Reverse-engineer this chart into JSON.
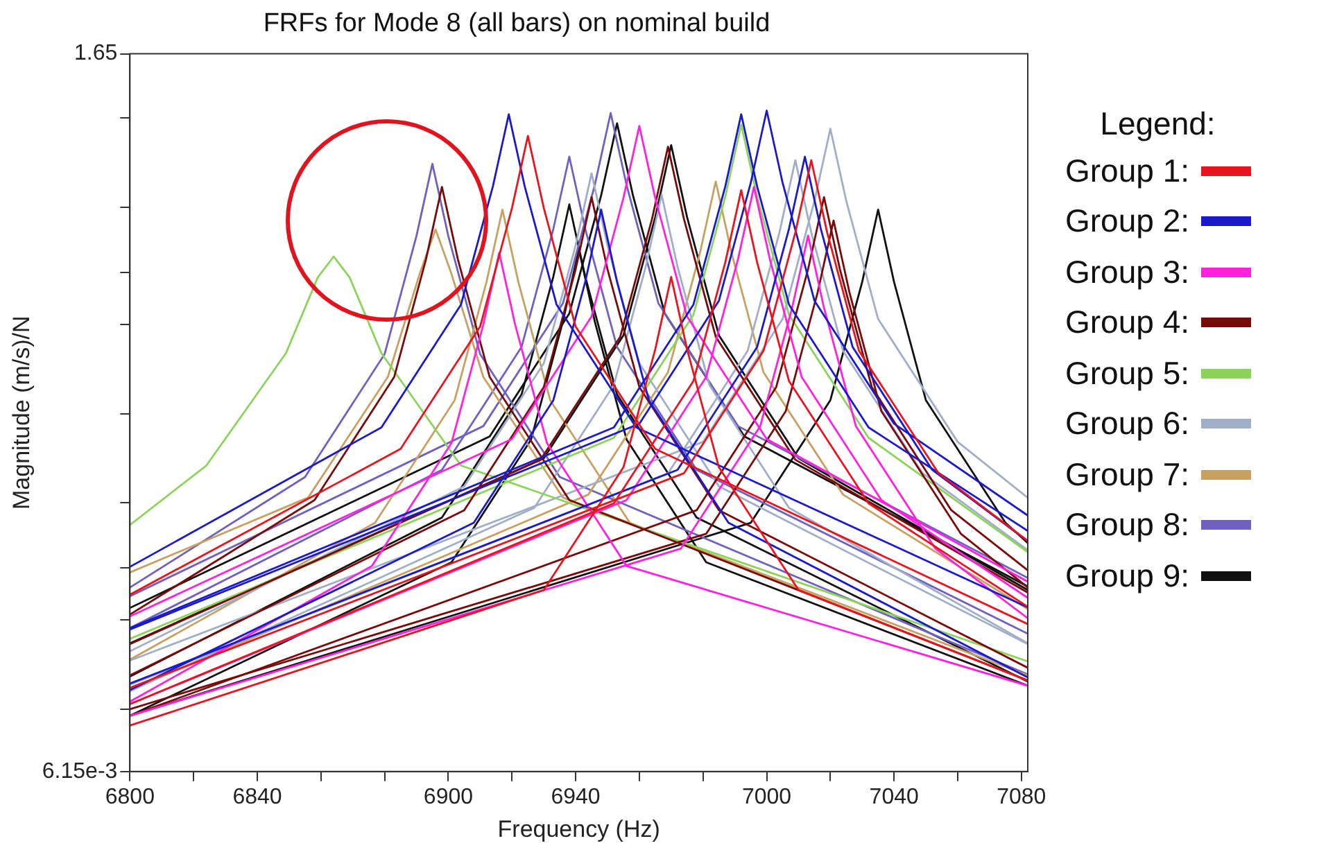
{
  "chart_data": {
    "type": "line",
    "title": "FRFs for Mode 8 (all bars) on nominal build",
    "xlabel": "Frequency (Hz)",
    "ylabel": "Magnitude (m/s)/N",
    "legend_title": "Legend:",
    "legend": "right",
    "log": "y",
    "grid": false,
    "marker": "none",
    "xlim": [
      6800,
      7082
    ],
    "xticks": [
      6800,
      {
        "value": 6820,
        "label": null
      },
      6840,
      {
        "value": 6860,
        "label": null
      },
      {
        "value": 6880,
        "label": null
      },
      6900,
      {
        "value": 6920,
        "label": null
      },
      6940,
      {
        "value": 6960,
        "label": null
      },
      {
        "value": 6980,
        "label": null
      },
      7000,
      {
        "value": 7020,
        "label": null
      },
      7040,
      {
        "value": 7060,
        "label": null
      },
      7080
    ],
    "ylim": [
      0.00615,
      1.65
    ],
    "yticks": [
      {
        "value": 0.00615,
        "label": "6.15e-3"
      },
      {
        "value": 0.01,
        "label": null
      },
      {
        "value": 0.02,
        "label": null
      },
      {
        "value": 0.03,
        "label": null
      },
      {
        "value": 0.05,
        "label": null
      },
      {
        "value": 0.1,
        "label": null
      },
      {
        "value": 0.2,
        "label": null
      },
      {
        "value": 0.3,
        "label": null
      },
      {
        "value": 0.5,
        "label": null
      },
      {
        "value": 1,
        "label": null
      },
      1.65
    ],
    "series": [
      {
        "name": "Group 1:",
        "color": "#e8141e",
        "x": [
          6800,
          6885,
          6910,
          6920,
          6925,
          6930,
          6940,
          6965,
          7082
        ],
        "values": [
          0.0244,
          0.0759,
          0.197,
          0.496,
          0.87,
          0.496,
          0.197,
          0.0759,
          0.0194
        ]
      },
      {
        "color": "#e8141e",
        "x": [
          6800,
          6930,
          6955,
          6965,
          6970,
          6975,
          6985,
          7010,
          7082
        ],
        "values": [
          0.0088,
          0.0253,
          0.0658,
          0.165,
          0.29,
          0.165,
          0.0658,
          0.0253,
          0.0125
        ]
      },
      {
        "color": "#e8141e",
        "x": [
          6800,
          6952,
          6977,
          6987,
          6992,
          6997,
          7007,
          7032,
          7082
        ],
        "values": [
          0.0104,
          0.0497,
          0.129,
          0.325,
          0.57,
          0.325,
          0.129,
          0.0497,
          0.0222
        ]
      },
      {
        "color": "#e8141e",
        "x": [
          6800,
          6974,
          6999,
          7009,
          7014,
          7019,
          7029,
          7054,
          7082
        ],
        "values": [
          0.0118,
          0.0628,
          0.163,
          0.41,
          0.72,
          0.41,
          0.163,
          0.0628,
          0.0371
        ]
      },
      {
        "name": "Group 2:",
        "color": "#1a1acc",
        "x": [
          6800,
          6879,
          6904,
          6914,
          6919,
          6924,
          6934,
          6959,
          7082
        ],
        "values": [
          0.0303,
          0.0898,
          0.234,
          0.587,
          1.03,
          0.587,
          0.234,
          0.0898,
          0.0221
        ]
      },
      {
        "color": "#1a1acc",
        "x": [
          6800,
          6908,
          6933,
          6943,
          6948,
          6953,
          6963,
          6988,
          7082
        ],
        "values": [
          0.0116,
          0.0427,
          0.111,
          0.279,
          0.49,
          0.279,
          0.111,
          0.0427,
          0.0128
        ]
      },
      {
        "color": "#1a1acc",
        "x": [
          6800,
          6952,
          6977,
          6987,
          6992,
          6997,
          7007,
          7032,
          7082
        ],
        "values": [
          0.0188,
          0.0898,
          0.234,
          0.587,
          1.03,
          0.587,
          0.234,
          0.0898,
          0.0401
        ]
      },
      {
        "color": "#1a1acc",
        "x": [
          6800,
          6960,
          6985,
          6995,
          7000,
          7005,
          7015,
          7040,
          7082
        ],
        "values": [
          0.0186,
          0.0924,
          0.241,
          0.604,
          1.06,
          0.604,
          0.241,
          0.0924,
          0.0452
        ]
      },
      {
        "color": "#1a1acc",
        "x": [
          6800,
          6972,
          6997,
          7007,
          7012,
          7017,
          7027,
          7052,
          7082
        ],
        "values": [
          0.0122,
          0.0645,
          0.168,
          0.422,
          0.74,
          0.422,
          0.168,
          0.0645,
          0.037
        ]
      },
      {
        "name": "Group 3:",
        "color": "#ff20e0",
        "x": [
          6800,
          6876,
          6901,
          6911,
          6916,
          6921,
          6931,
          6956,
          7082
        ],
        "values": [
          0.0106,
          0.0305,
          0.0795,
          0.2,
          0.35,
          0.2,
          0.0795,
          0.0305,
          0.012
        ]
      },
      {
        "color": "#ff20e0",
        "x": [
          6800,
          6920,
          6945,
          6955,
          6960,
          6965,
          6975,
          7000,
          7082
        ],
        "values": [
          0.0206,
          0.082,
          0.213,
          0.536,
          0.94,
          0.536,
          0.213,
          0.082,
          0.027
        ]
      },
      {
        "color": "#ff20e0",
        "x": [
          6800,
          6956,
          6981,
          6991,
          6996,
          7001,
          7011,
          7036,
          7082
        ],
        "values": [
          0.0104,
          0.051,
          0.133,
          0.333,
          0.585,
          0.333,
          0.133,
          0.051,
          0.0238
        ]
      },
      {
        "color": "#ff20e0",
        "x": [
          6800,
          6973,
          6998,
          7008,
          7013,
          7018,
          7028,
          7053,
          7082
        ],
        "values": [
          0.0095,
          0.0349,
          0.0908,
          0.228,
          0.4,
          0.228,
          0.0908,
          0.0349,
          0.0203
        ]
      },
      {
        "name": "Group 4:",
        "color": "#7a0a0a",
        "x": [
          6800,
          6858,
          6883,
          6893,
          6898,
          6903,
          6913,
          6938,
          7082
        ],
        "values": [
          0.0209,
          0.051,
          0.133,
          0.333,
          0.585,
          0.333,
          0.133,
          0.051,
          0.0125
        ]
      },
      {
        "color": "#7a0a0a",
        "x": [
          6800,
          6905,
          6930,
          6940,
          6945,
          6950,
          6960,
          6985,
          7082
        ],
        "values": [
          0.013,
          0.0471,
          0.123,
          0.308,
          0.54,
          0.308,
          0.123,
          0.0471,
          0.0138
        ]
      },
      {
        "color": "#7a0a0a",
        "x": [
          6800,
          6929,
          6954,
          6964,
          6969,
          6974,
          6984,
          7009,
          7082
        ],
        "values": [
          0.0166,
          0.0698,
          0.182,
          0.456,
          0.8,
          0.456,
          0.182,
          0.0698,
          0.0248
        ]
      },
      {
        "color": "#7a0a0a",
        "x": [
          6800,
          6978,
          7003,
          7013,
          7018,
          7023,
          7033,
          7058,
          7082
        ],
        "values": [
          0.0095,
          0.0471,
          0.123,
          0.308,
          0.54,
          0.308,
          0.123,
          0.0471,
          0.0295
        ]
      },
      {
        "color": "#7a0a0a",
        "x": [
          6800,
          6981,
          7006,
          7016,
          7021,
          7026,
          7036,
          7061,
          7082
        ],
        "values": [
          0.01,
          0.0392,
          0.102,
          0.257,
          0.45,
          0.257,
          0.102,
          0.0392,
          0.0258
        ]
      },
      {
        "name": "Group 5:",
        "color": "#8cd35a",
        "x": [
          6800,
          6824,
          6849,
          6859,
          6864,
          6869,
          6879,
          6904,
          7082
        ],
        "values": [
          0.042,
          0.0667,
          0.16,
          0.289,
          0.34,
          0.289,
          0.16,
          0.0667,
          0.0145
        ]
      },
      {
        "color": "#8cd35a",
        "x": [
          6800,
          6952,
          6977,
          6987,
          6992,
          6997,
          7007,
          7032,
          7082
        ],
        "values": [
          0.0173,
          0.0828,
          0.216,
          0.542,
          0.95,
          0.542,
          0.216,
          0.0828,
          0.034
        ]
      },
      {
        "name": "Group 6:",
        "color": "#a0aec8",
        "x": [
          6800,
          6905,
          6930,
          6940,
          6945,
          6950,
          6960,
          6985,
          7082
        ],
        "values": [
          0.0157,
          0.0567,
          0.148,
          0.371,
          0.65,
          0.371,
          0.148,
          0.0567,
          0.0166
        ]
      },
      {
        "color": "#a0aec8",
        "x": [
          6800,
          6927,
          6952,
          6962,
          6967,
          6972,
          6982,
          7007,
          7082
        ],
        "values": [
          0.0115,
          0.048,
          0.125,
          0.314,
          0.55,
          0.314,
          0.125,
          0.048,
          0.0167
        ]
      },
      {
        "color": "#a0aec8",
        "x": [
          6800,
          6969,
          6994,
          7004,
          7009,
          7014,
          7024,
          7049,
          7082
        ],
        "values": [
          0.0121,
          0.0628,
          0.163,
          0.41,
          0.72,
          0.41,
          0.163,
          0.0628,
          0.0345
        ]
      },
      {
        "color": "#a0aec8",
        "x": [
          6800,
          6980,
          7005,
          7015,
          7020,
          7025,
          7035,
          7060,
          7082
        ],
        "values": [
          0.0146,
          0.0802,
          0.209,
          0.524,
          0.92,
          0.524,
          0.209,
          0.0802,
          0.0519
        ]
      },
      {
        "name": "Group 7:",
        "color": "#c8a060",
        "x": [
          6800,
          6856,
          6881,
          6891,
          6896,
          6901,
          6911,
          6936,
          7082
        ],
        "values": [
          0.029,
          0.052,
          0.133,
          0.297,
          0.42,
          0.297,
          0.133,
          0.052,
          0.013
        ]
      },
      {
        "color": "#c8a060",
        "x": [
          6800,
          6877,
          6902,
          6912,
          6917,
          6922,
          6932,
          6957,
          7082
        ],
        "values": [
          0.0147,
          0.0427,
          0.111,
          0.279,
          0.49,
          0.279,
          0.111,
          0.0427,
          0.0125
        ]
      },
      {
        "color": "#c8a060",
        "x": [
          6800,
          6944,
          6969,
          6979,
          6984,
          6989,
          6999,
          7024,
          7082
        ],
        "values": [
          0.0116,
          0.0532,
          0.138,
          0.348,
          0.61,
          0.348,
          0.138,
          0.0532,
          0.0218
        ]
      },
      {
        "name": "Group 8:",
        "color": "#7060c0",
        "x": [
          6800,
          6855,
          6880,
          6890,
          6895,
          6900,
          6910,
          6935,
          7082
        ],
        "values": [
          0.0258,
          0.061,
          0.159,
          0.399,
          0.7,
          0.399,
          0.159,
          0.061,
          0.0131
        ]
      },
      {
        "color": "#7060c0",
        "x": [
          6800,
          6898,
          6923,
          6933,
          6938,
          6943,
          6953,
          6978,
          7082
        ],
        "values": [
          0.0188,
          0.0645,
          0.168,
          0.422,
          0.74,
          0.422,
          0.168,
          0.0645,
          0.018
        ]
      },
      {
        "color": "#7060c0",
        "x": [
          6800,
          6911,
          6936,
          6946,
          6951,
          6956,
          6966,
          6991,
          7082
        ],
        "values": [
          0.0241,
          0.0907,
          0.236,
          0.593,
          1.04,
          0.593,
          0.236,
          0.0907,
          0.0278
        ]
      },
      {
        "name": "Group 9:",
        "color": "#111111",
        "x": [
          6800,
          6898,
          6923,
          6933,
          6938,
          6943,
          6953,
          6978,
          7082
        ],
        "values": [
          0.0129,
          0.0445,
          0.116,
          0.291,
          0.51,
          0.291,
          0.116,
          0.0445,
          0.0124
        ]
      },
      {
        "color": "#111111",
        "x": [
          6800,
          6901,
          6926,
          6936,
          6941,
          6946,
          6956,
          6981,
          7082
        ],
        "values": [
          0.0095,
          0.0314,
          0.0817,
          0.205,
          0.36,
          0.205,
          0.0817,
          0.0314,
          0.012
        ]
      },
      {
        "color": "#111111",
        "x": [
          6800,
          6913,
          6938,
          6948,
          6953,
          6958,
          6968,
          6993,
          7082
        ],
        "values": [
          0.022,
          0.0837,
          0.218,
          0.547,
          0.96,
          0.547,
          0.218,
          0.0837,
          0.026
        ]
      },
      {
        "color": "#111111",
        "x": [
          6800,
          6930,
          6955,
          6965,
          6970,
          6975,
          6985,
          7010,
          7082
        ],
        "values": [
          0.0167,
          0.0706,
          0.184,
          0.462,
          0.81,
          0.462,
          0.184,
          0.0706,
          0.0253
        ]
      },
      {
        "color": "#111111",
        "x": [
          6800,
          6995,
          7020,
          7030,
          7035,
          7040,
          7050,
          7075,
          7082
        ],
        "values": [
          0.0095,
          0.0427,
          0.111,
          0.279,
          0.49,
          0.279,
          0.111,
          0.0427,
          0.0365
        ]
      }
    ]
  }
}
